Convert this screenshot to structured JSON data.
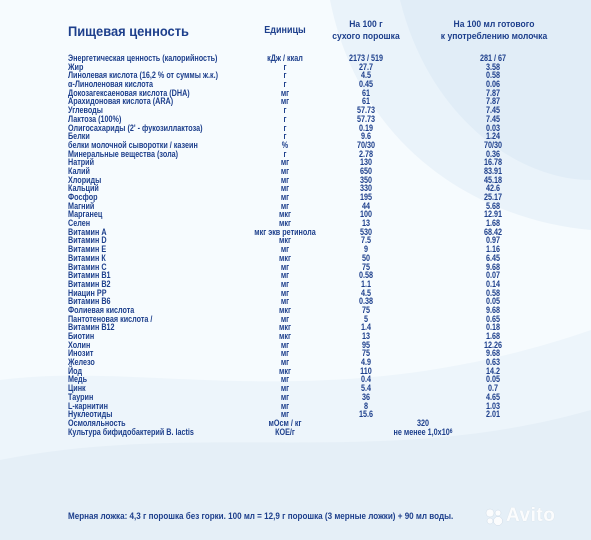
{
  "header": {
    "title": "Пищевая ценность",
    "units": "Единицы",
    "col1_line1": "На 100 г",
    "col1_line2": "сухого порошка",
    "col2_line1": "На 100 мл готового",
    "col2_line2": "к употреблению молочка"
  },
  "rows": [
    {
      "name": "Энергетическая ценность (калорийность)",
      "unit": "кДж / ккал",
      "v1": "2173 / 519",
      "v2": "281 / 67"
    },
    {
      "name": "Жир",
      "unit": "г",
      "v1": "27.7",
      "v2": "3.58"
    },
    {
      "name": "Линолевая кислота (16,2 % от суммы ж.к.)",
      "unit": "г",
      "v1": "4.5",
      "v2": "0.58"
    },
    {
      "name": "α-Линоленовая кислота",
      "unit": "г",
      "v1": "0.45",
      "v2": "0.06"
    },
    {
      "name": "Докозагексаеновая кислота (DHA)",
      "unit": "мг",
      "v1": "61",
      "v2": "7.87"
    },
    {
      "name": "Арахидоновая кислота (ARA)",
      "unit": "мг",
      "v1": "61",
      "v2": "7.87"
    },
    {
      "name": "Углеводы",
      "unit": "г",
      "v1": "57.73",
      "v2": "7.45"
    },
    {
      "name": "Лактоза (100%)",
      "unit": "г",
      "v1": "57.73",
      "v2": "7.45"
    },
    {
      "name": "Олигосахариды (2' - фукозиллактоза)",
      "unit": "г",
      "v1": "0.19",
      "v2": "0.03"
    },
    {
      "name": "Белки",
      "unit": "г",
      "v1": "9.6",
      "v2": "1.24"
    },
    {
      "name": "белки молочной сыворотки / казеин",
      "unit": "%",
      "v1": "70/30",
      "v2": "70/30"
    },
    {
      "name": "Минеральные вещества (зола)",
      "unit": "г",
      "v1": "2.78",
      "v2": "0.36"
    },
    {
      "name": "Натрий",
      "unit": "мг",
      "v1": "130",
      "v2": "16.78"
    },
    {
      "name": "Калий",
      "unit": "мг",
      "v1": "650",
      "v2": "83.91"
    },
    {
      "name": "Хлориды",
      "unit": "мг",
      "v1": "350",
      "v2": "45.18"
    },
    {
      "name": "Кальций",
      "unit": "мг",
      "v1": "330",
      "v2": "42.6"
    },
    {
      "name": "Фосфор",
      "unit": "мг",
      "v1": "195",
      "v2": "25.17"
    },
    {
      "name": "Магний",
      "unit": "мг",
      "v1": "44",
      "v2": "5.68"
    },
    {
      "name": "Марганец",
      "unit": "мкг",
      "v1": "100",
      "v2": "12.91"
    },
    {
      "name": "Селен",
      "unit": "мкг",
      "v1": "13",
      "v2": "1.68"
    },
    {
      "name": "Витамин А",
      "unit": "мкг экв ретинола",
      "v1": "530",
      "v2": "68.42"
    },
    {
      "name": "Витамин D",
      "unit": "мкг",
      "v1": "7.5",
      "v2": "0.97"
    },
    {
      "name": "Витамин Е",
      "unit": "мг",
      "v1": "9",
      "v2": "1.16"
    },
    {
      "name": "Витамин К",
      "unit": "мкг",
      "v1": "50",
      "v2": "6.45"
    },
    {
      "name": "Витамин С",
      "unit": "мг",
      "v1": "75",
      "v2": "9.68"
    },
    {
      "name": "Витамин В1",
      "unit": "мг",
      "v1": "0.58",
      "v2": "0.07"
    },
    {
      "name": "Витамин В2",
      "unit": "мг",
      "v1": "1.1",
      "v2": "0.14"
    },
    {
      "name": "Ниацин РР",
      "unit": "мг",
      "v1": "4.5",
      "v2": "0.58"
    },
    {
      "name": "Витамин В6",
      "unit": "мг",
      "v1": "0.38",
      "v2": "0.05"
    },
    {
      "name": "Фолиевая кислота",
      "unit": "мкг",
      "v1": "75",
      "v2": "9.68"
    },
    {
      "name": "Пантотеновая кислота /",
      "unit": "мг",
      "v1": "5",
      "v2": "0.65"
    },
    {
      "name": "Витамин В12",
      "unit": "мкг",
      "v1": "1.4",
      "v2": "0.18"
    },
    {
      "name": "Биотин",
      "unit": "мкг",
      "v1": "13",
      "v2": "1.68"
    },
    {
      "name": "Холин",
      "unit": "мг",
      "v1": "95",
      "v2": "12.26"
    },
    {
      "name": "Инозит",
      "unit": "мг",
      "v1": "75",
      "v2": "9.68"
    },
    {
      "name": "Железо",
      "unit": "мг",
      "v1": "4.9",
      "v2": "0.63"
    },
    {
      "name": "Йод",
      "unit": "мкг",
      "v1": "110",
      "v2": "14.2"
    },
    {
      "name": "Медь",
      "unit": "мг",
      "v1": "0.4",
      "v2": "0.05"
    },
    {
      "name": "Цинк",
      "unit": "мг",
      "v1": "5.4",
      "v2": "0.7"
    },
    {
      "name": "Таурин",
      "unit": "мг",
      "v1": "36",
      "v2": "4.65"
    },
    {
      "name": "L-карнитин",
      "unit": "мг",
      "v1": "8",
      "v2": "1.03"
    },
    {
      "name": "Нуклеотиды",
      "unit": "мг",
      "v1": "15.6",
      "v2": "2.01"
    },
    {
      "name": "Осмоляльность",
      "unit": "мОсм / кг",
      "v1": "320",
      "v2": ""
    },
    {
      "name": "Культура бифидобактерий B. lactis",
      "unit": "КОЕ/г",
      "v1": "не менее 1,0x10",
      "v2": ""
    }
  ],
  "bifi_exponent": "6",
  "footer": "Мерная ложка: 4,3 г порошка без горки. 100 мл = 12,9 г порошка (3 мерные ложки) + 90 мл воды.",
  "watermark": "Avito",
  "colors": {
    "text": "#1d3f8c",
    "background": "#f6fbfe",
    "wave": "#dbe9f5"
  }
}
